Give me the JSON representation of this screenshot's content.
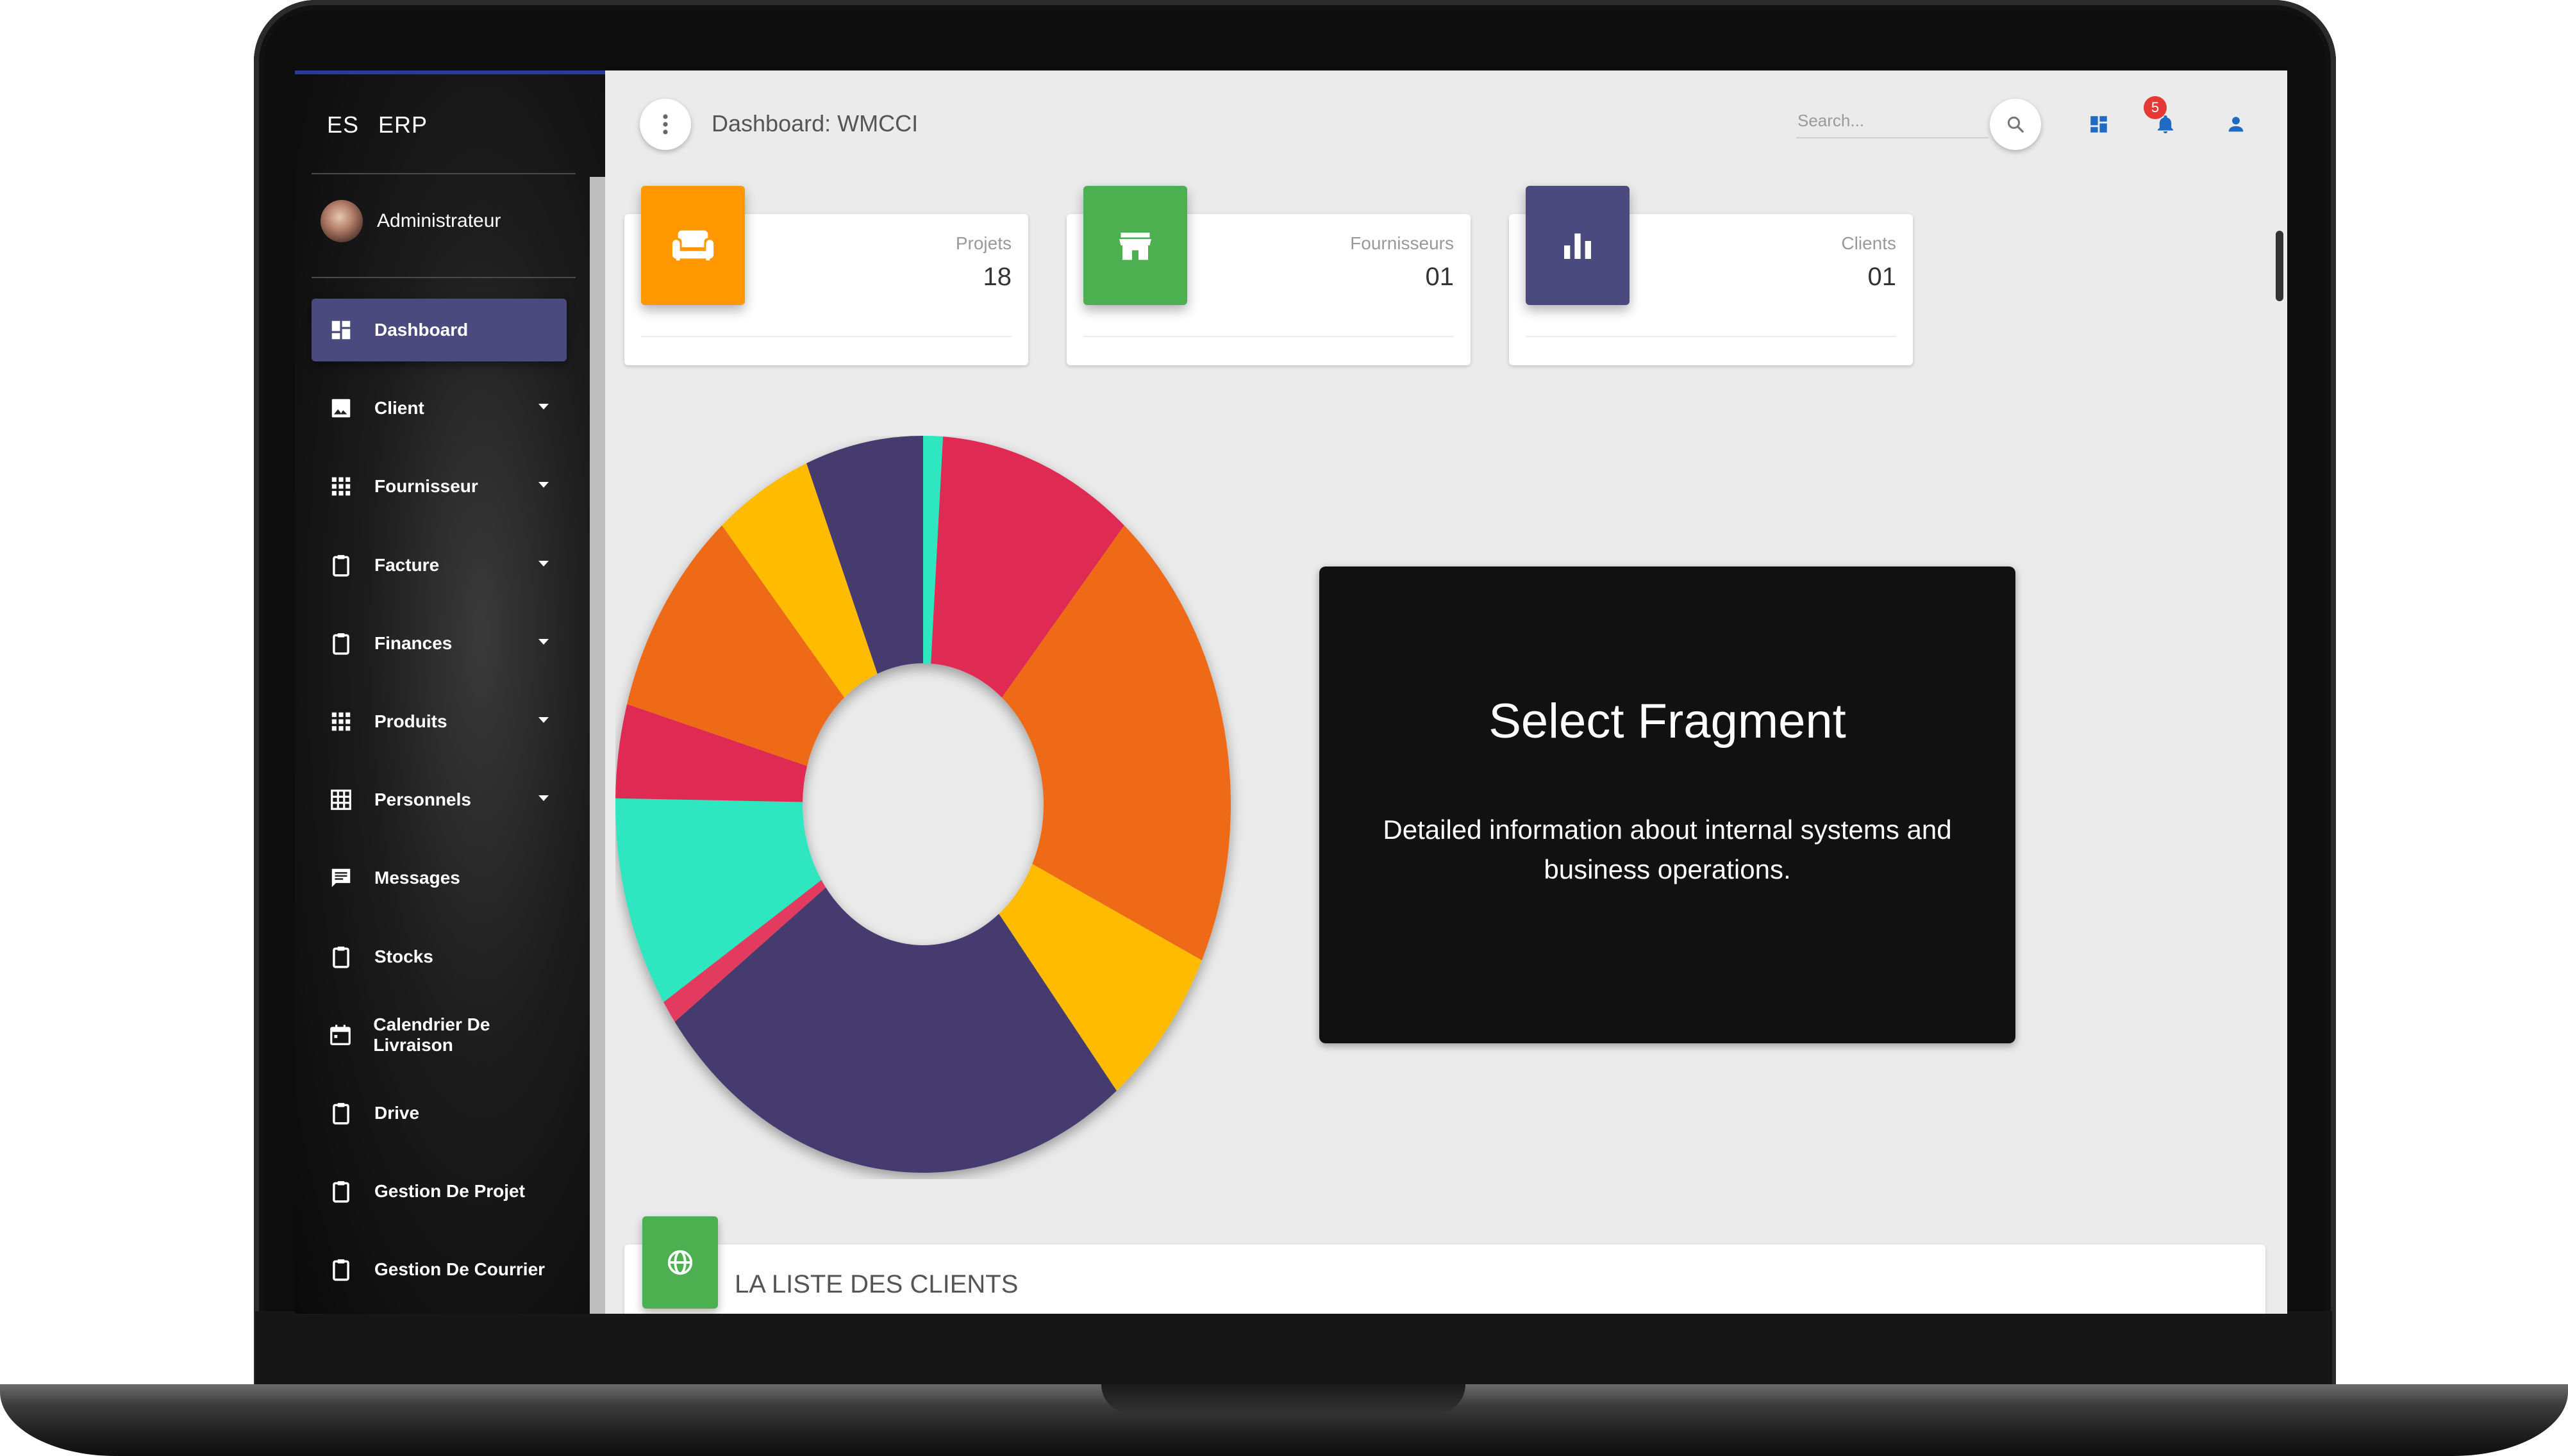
{
  "brand": {
    "part1": "ES",
    "part2": "ERP"
  },
  "user": {
    "name": "Administrateur"
  },
  "sidebar": {
    "items": [
      {
        "label": "Dashboard",
        "icon": "dashboard-icon",
        "active": true,
        "has_caret": false
      },
      {
        "label": "Client",
        "icon": "image-icon",
        "has_caret": true
      },
      {
        "label": "Fournisseur",
        "icon": "apps-grid-icon",
        "has_caret": true
      },
      {
        "label": "Facture",
        "icon": "clipboard-icon",
        "has_caret": true
      },
      {
        "label": "Finances",
        "icon": "clipboard-icon",
        "has_caret": true
      },
      {
        "label": "Produits",
        "icon": "apps-grid-icon",
        "has_caret": true
      },
      {
        "label": "Personnels",
        "icon": "table-grid-icon",
        "has_caret": true
      },
      {
        "label": "Messages",
        "icon": "message-icon",
        "has_caret": false
      },
      {
        "label": "Stocks",
        "icon": "clipboard-icon",
        "has_caret": false
      },
      {
        "label": "Calendrier De Livraison",
        "icon": "calendar-icon",
        "has_caret": false
      },
      {
        "label": "Drive",
        "icon": "clipboard-icon",
        "has_caret": false
      },
      {
        "label": "Gestion De Projet",
        "icon": "clipboard-icon",
        "has_caret": false
      },
      {
        "label": "Gestion De Courrier",
        "icon": "clipboard-icon",
        "has_caret": false
      }
    ]
  },
  "header": {
    "breadcrumb": "Dashboard: WMCCI",
    "search_placeholder": "Search...",
    "notification_count": "5"
  },
  "stats": [
    {
      "label": "Projets",
      "value": "18",
      "color": "#ff9800",
      "icon": "sofa-icon"
    },
    {
      "label": "Fournisseurs",
      "value": "01",
      "color": "#4caf50",
      "icon": "store-icon"
    },
    {
      "label": "Clients",
      "value": "01",
      "color": "#4a4a7e",
      "icon": "bar-chart-icon"
    }
  ],
  "chart_data": {
    "type": "pie",
    "subtype": "donut",
    "title": "",
    "values": [
      1,
      10,
      20,
      7,
      25,
      1,
      9,
      4,
      9,
      5,
      6
    ],
    "colors": [
      "#2ee6c0",
      "#df2a52",
      "#ef6a16",
      "#ffbb00",
      "#453b6e",
      "#e23b5f",
      "#2ee6c0",
      "#df2a52",
      "#ef6a16",
      "#ffbb00",
      "#453b6e"
    ]
  },
  "panel": {
    "title": "Select Fragment",
    "text": "Detailed information about internal systems and business operations."
  },
  "client_list": {
    "title": "LA LISTE DES CLIENTS"
  }
}
